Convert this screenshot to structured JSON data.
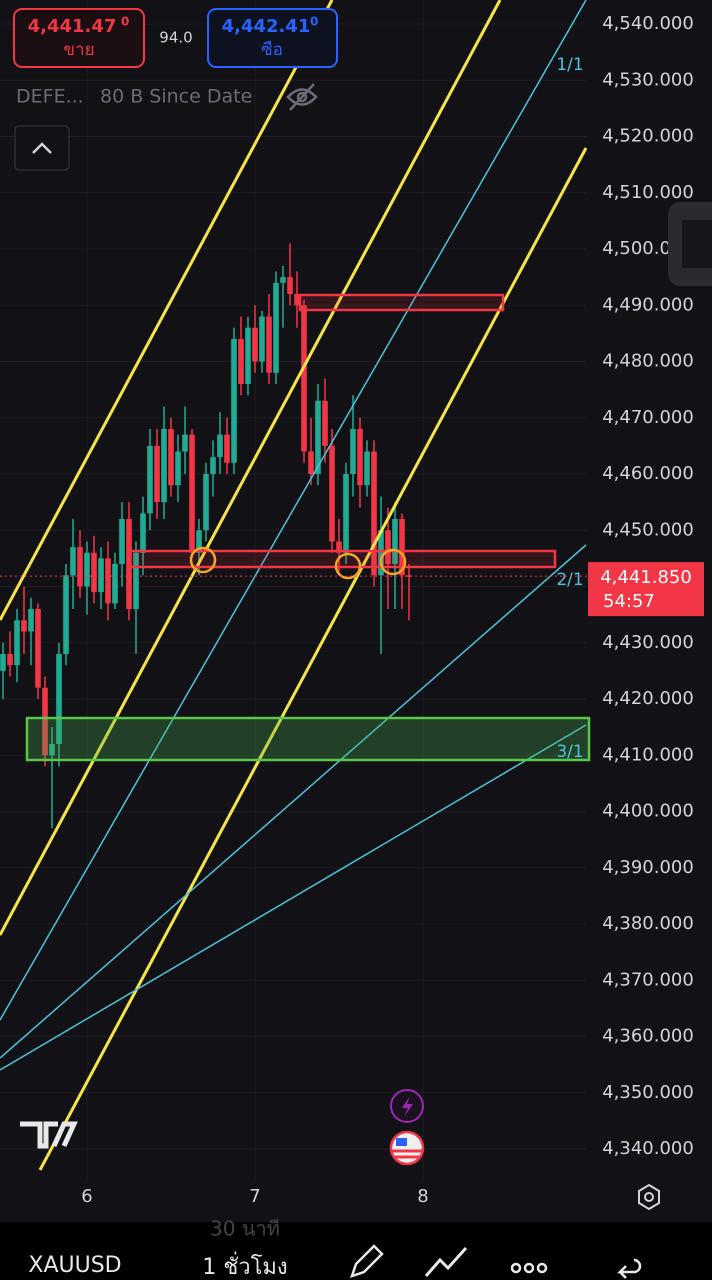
{
  "header": {
    "sell_price": "4,441.47",
    "sell_sup": "0",
    "sell_label": "ขาย",
    "spread": "94.0",
    "buy_price": "4,442.41",
    "buy_sup": "0",
    "buy_label": "ซือ",
    "indicator_name": "DEFE...",
    "indicator_params": "80 B Since Date"
  },
  "chart_data": {
    "type": "candlestick",
    "up_color": "#22ab94",
    "down_color": "#f23645",
    "grid": true,
    "xlim": [
      0,
      83
    ],
    "xticks": [
      {
        "value": 12,
        "label": "6"
      },
      {
        "value": 36,
        "label": "7"
      },
      {
        "value": 60,
        "label": "8"
      }
    ],
    "ylim": [
      4340,
      4540
    ],
    "yticks": [
      {
        "value": 4340,
        "label": "4,340.000"
      },
      {
        "value": 4350,
        "label": "4,350.000"
      },
      {
        "value": 4360,
        "label": "4,360.000"
      },
      {
        "value": 4370,
        "label": "4,370.000"
      },
      {
        "value": 4380,
        "label": "4,380.000"
      },
      {
        "value": 4390,
        "label": "4,390.000"
      },
      {
        "value": 4400,
        "label": "4,400.000"
      },
      {
        "value": 4410,
        "label": "4,410.000"
      },
      {
        "value": 4420,
        "label": "4,420.000"
      },
      {
        "value": 4430,
        "label": "4,430.000"
      },
      {
        "value": 4440,
        "label": "4,440.000"
      },
      {
        "value": 4450,
        "label": "4,450.000"
      },
      {
        "value": 4460,
        "label": "4,460.000"
      },
      {
        "value": 4470,
        "label": "4,470.000"
      },
      {
        "value": 4480,
        "label": "4,480.000"
      },
      {
        "value": 4490,
        "label": "4,490.000"
      },
      {
        "value": 4500,
        "label": "4,500.000"
      },
      {
        "value": 4510,
        "label": "4,510.000"
      },
      {
        "value": 4520,
        "label": "4,520.000"
      },
      {
        "value": 4530,
        "label": "4,530.000"
      },
      {
        "value": 4540,
        "label": "4,540.000"
      }
    ],
    "open": [
      4425,
      4428,
      4426,
      4434,
      4432,
      4436,
      4422,
      4410,
      4412,
      4428,
      4442,
      4447,
      4440,
      4446,
      4439,
      4445,
      4437,
      4444,
      4452,
      4436,
      4446,
      4453,
      4465,
      4455,
      4468,
      4458,
      4464,
      4467,
      4446,
      4450,
      4460,
      4463,
      4467,
      4462,
      4484,
      4476,
      4486,
      4480,
      4488,
      4478,
      4494,
      4495,
      4492,
      4490,
      4464,
      4460,
      4473,
      4465,
      4448,
      4446,
      4460,
      4468,
      4458,
      4464,
      4442,
      4450,
      4444,
      4452,
      4442
    ],
    "high": [
      4430,
      4432,
      4436,
      4440,
      4438,
      4437,
      4424,
      4415,
      4430,
      4444,
      4452,
      4450,
      4448,
      4449,
      4447,
      4448,
      4446,
      4455,
      4455,
      4448,
      4456,
      4468,
      4468,
      4472,
      4470,
      4467,
      4472,
      4468,
      4452,
      4462,
      4466,
      4471,
      4470,
      4486,
      4488,
      4488,
      4490,
      4489,
      4492,
      4496,
      4497,
      4501,
      4496,
      4491,
      4470,
      4476,
      4477,
      4468,
      4452,
      4462,
      4474,
      4470,
      4466,
      4466,
      4456,
      4454,
      4455,
      4453,
      4444
    ],
    "low": [
      4420,
      4424,
      4423,
      4428,
      4426,
      4420,
      4408,
      4397,
      4408,
      4426,
      4436,
      4438,
      4435,
      4437,
      4436,
      4434,
      4436,
      4440,
      4434,
      4428,
      4442,
      4450,
      4452,
      4452,
      4456,
      4455,
      4460,
      4445,
      4442,
      4448,
      4456,
      4460,
      4460,
      4460,
      4474,
      4474,
      4478,
      4478,
      4476,
      4476,
      4486,
      4490,
      4486,
      4462,
      4458,
      4458,
      4462,
      4446,
      4442,
      4444,
      4456,
      4454,
      4456,
      4440,
      4428,
      4436,
      4436,
      4436,
      4434
    ],
    "close": [
      4428,
      4426,
      4434,
      4432,
      4436,
      4422,
      4410,
      4412,
      4428,
      4442,
      4447,
      4440,
      4446,
      4439,
      4445,
      4437,
      4444,
      4452,
      4436,
      4446,
      4453,
      4465,
      4455,
      4468,
      4458,
      4464,
      4467,
      4446,
      4450,
      4460,
      4463,
      4467,
      4462,
      4484,
      4476,
      4486,
      4480,
      4488,
      4478,
      4494,
      4495,
      4492,
      4490,
      4464,
      4460,
      4473,
      4465,
      4448,
      4446,
      4460,
      4468,
      4458,
      4464,
      4442,
      4450,
      4444,
      4452,
      4442,
      4441.85
    ],
    "last_price": {
      "value": 4441.85,
      "label": "4,441.850"
    },
    "countdown": "54:57",
    "fan_labels": [
      "1/1",
      "2/1",
      "3/1"
    ]
  },
  "toolbar": {
    "symbol": "XAUUSD",
    "interval": "1 ชั่วโมง",
    "interval_prev": "30 นาที"
  }
}
